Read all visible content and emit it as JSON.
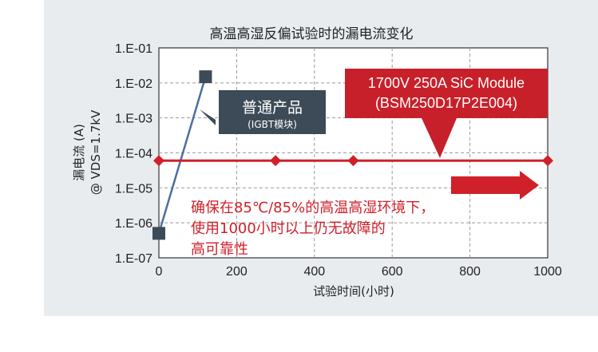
{
  "chart_data": {
    "type": "line",
    "title": "高温高湿反偏试验时的漏电流变化",
    "xlabel": "试验时间(小时)",
    "ylabel_line1": "漏电流 (A)",
    "ylabel_line2": "@ VDS=1.7kV",
    "x_ticks": [
      "0",
      "200",
      "400",
      "600",
      "800",
      "1000"
    ],
    "y_ticks": [
      "1.E-01",
      "1.E-02",
      "1.E-03",
      "1.E-04",
      "1.E-05",
      "1.E-06",
      "1.E-07"
    ],
    "xlim": [
      0,
      1000
    ],
    "ylim": [
      1e-07,
      0.1
    ],
    "y_scale": "log",
    "grid": true,
    "series": [
      {
        "name": "普通产品 (IGBT模块)",
        "color": "#3d4a57",
        "marker": "square",
        "x": [
          0,
          120
        ],
        "y": [
          5e-07,
          0.015
        ]
      },
      {
        "name": "1700V 250A SiC Module (BSM250D17P2E004)",
        "color": "#d0202a",
        "marker": "diamond",
        "x": [
          0,
          300,
          500,
          1000
        ],
        "y": [
          6e-05,
          6e-05,
          6e-05,
          6e-05
        ]
      }
    ]
  },
  "callouts": {
    "igbt_main": "普通产品",
    "igbt_sub": "(IGBT模块)",
    "sic_line1": "1700V 250A SiC Module",
    "sic_line2": "(BSM250D17P2E004)",
    "note_line1": "确保在85℃/85%的高温高湿环境下，",
    "note_line2": "使用1000小时以上仍无故障的",
    "note_line3": "高可靠性"
  },
  "colors": {
    "panel_bg": "#e9ecef",
    "igbt": "#3d4a57",
    "sic": "#d0202a"
  }
}
